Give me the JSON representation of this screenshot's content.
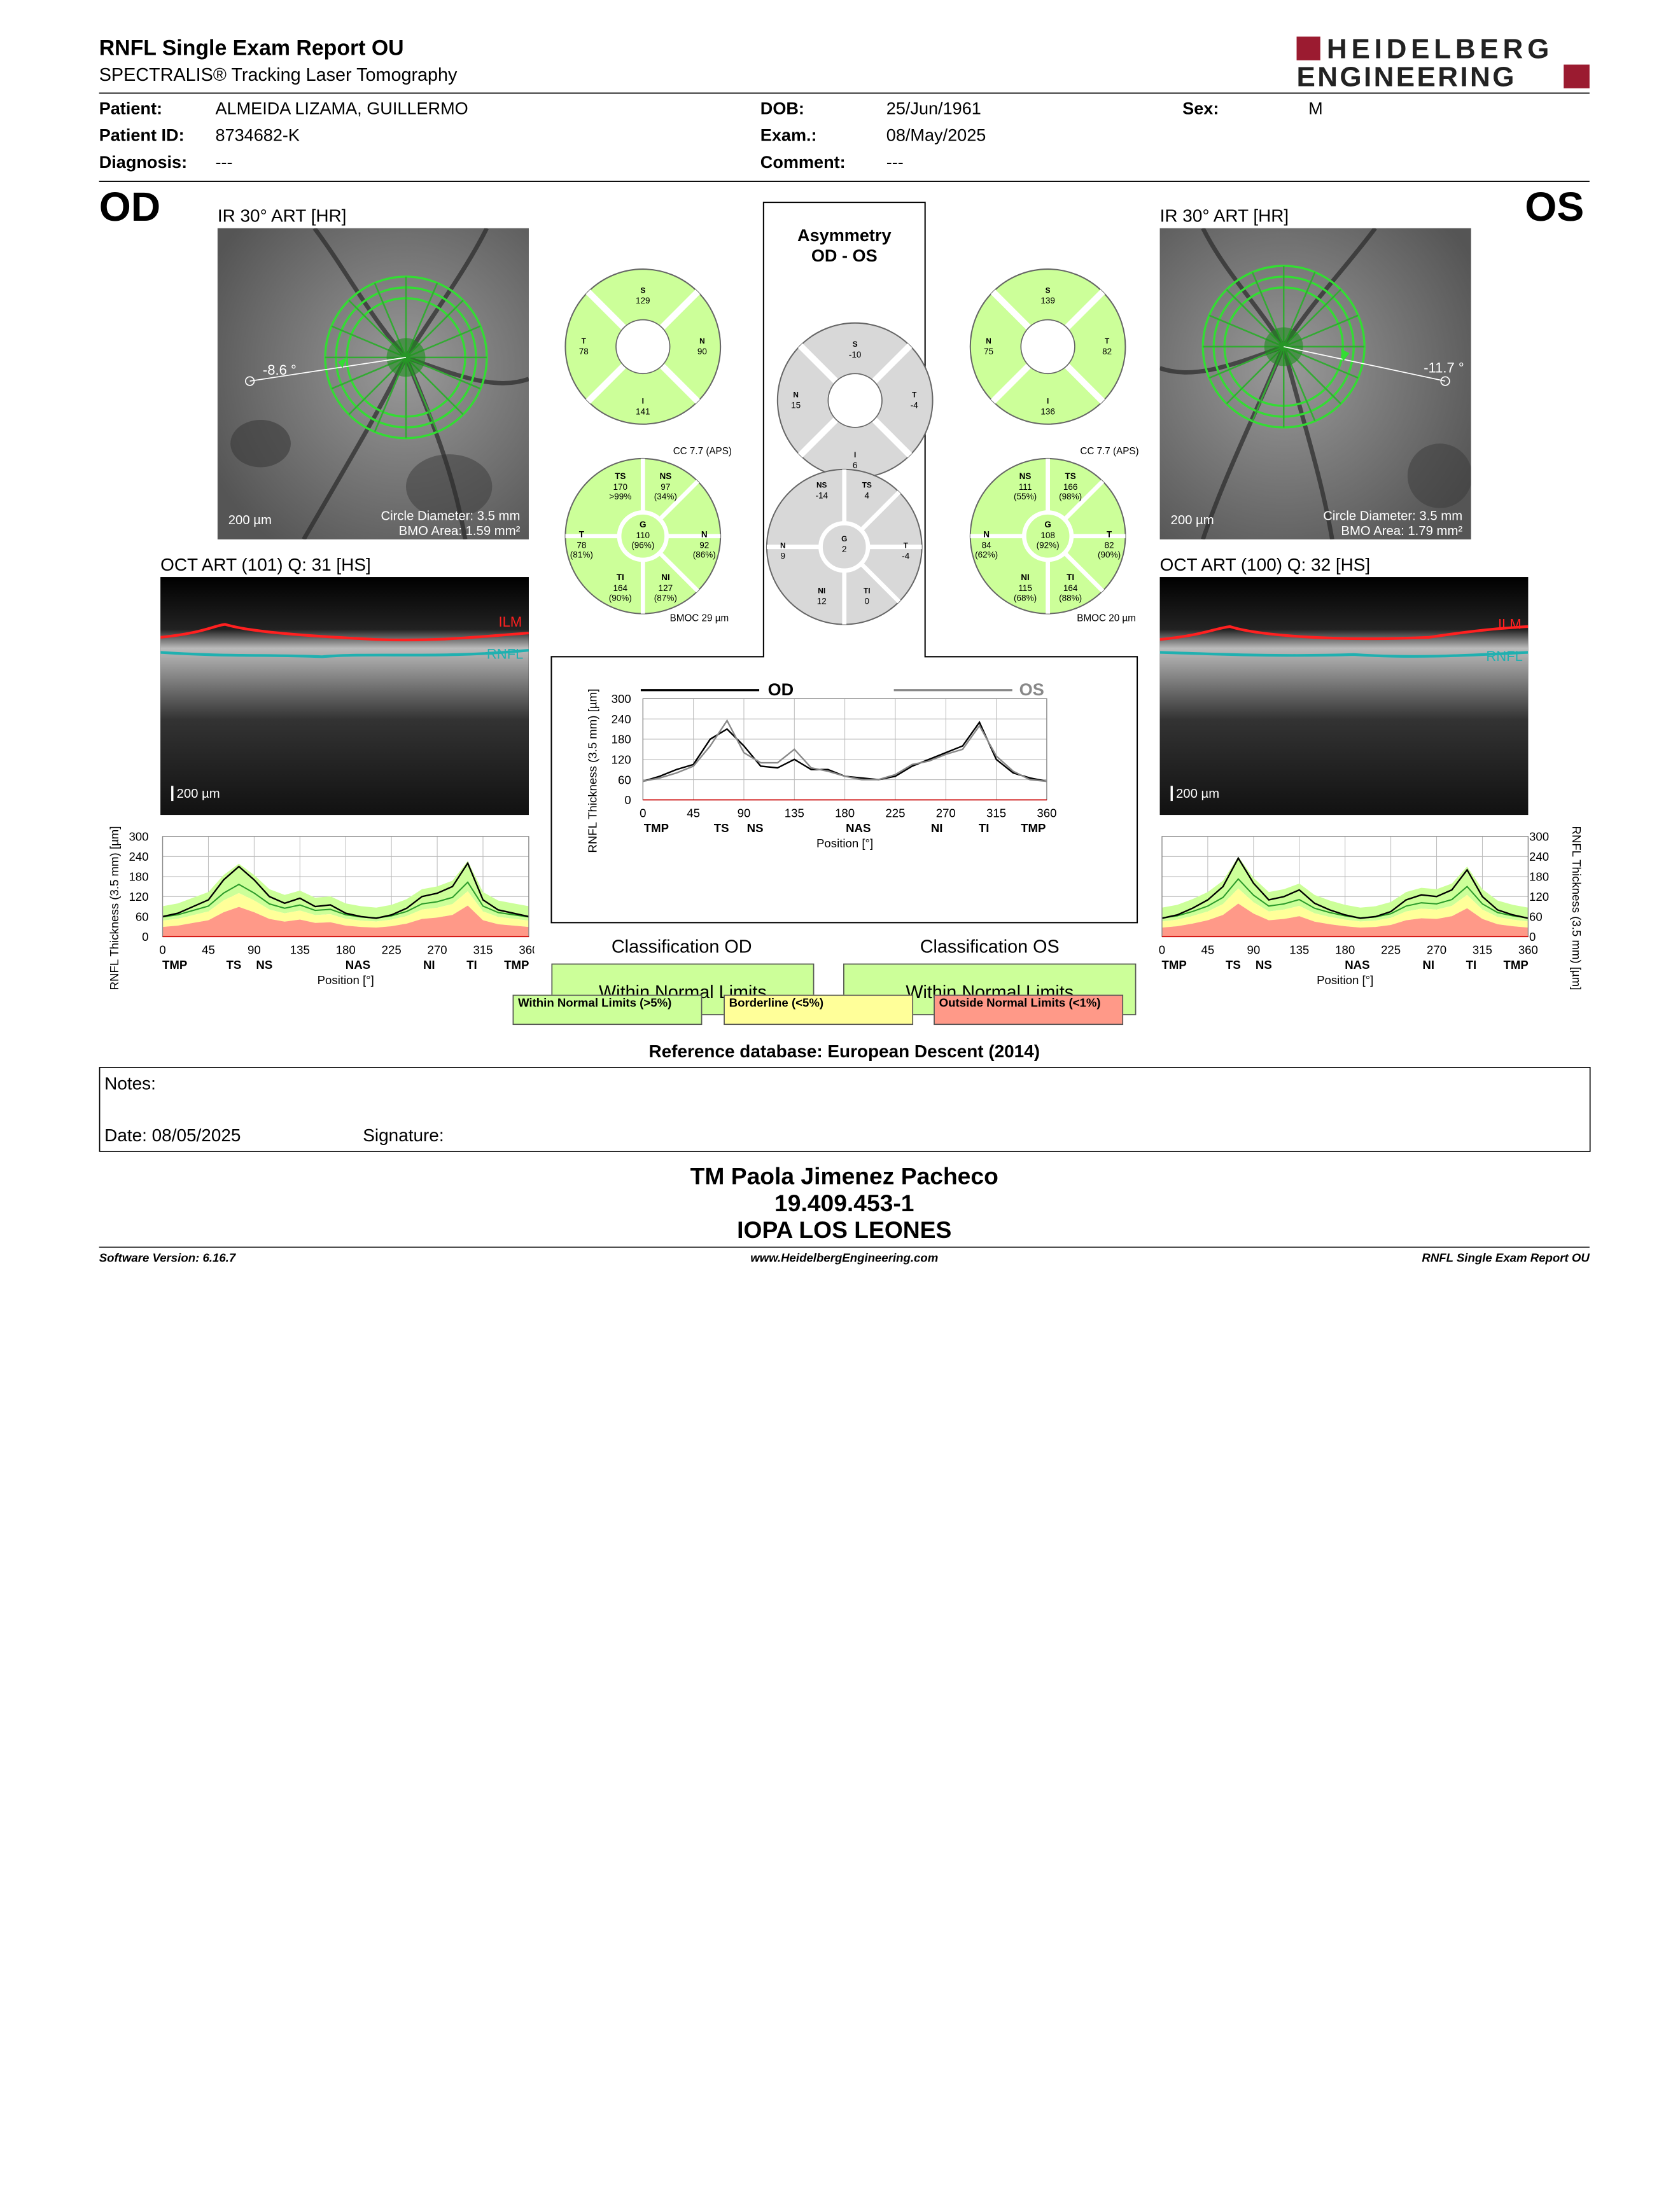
{
  "header": {
    "title": "RNFL Single Exam Report OU",
    "subtitle": "SPECTRALIS® Tracking Laser Tomography",
    "brand_line1": "HEIDELBERG",
    "brand_line2": "ENGINEERING",
    "brand_color": "#9b1b30"
  },
  "patient": {
    "patient_label": "Patient:",
    "patient": "ALMEIDA LIZAMA, GUILLERMO",
    "id_label": "Patient ID:",
    "id": "8734682-K",
    "diagnosis_label": "Diagnosis:",
    "diagnosis": "---",
    "dob_label": "DOB:",
    "dob": "25/Jun/1961",
    "exam_label": "Exam.:",
    "exam": "08/May/2025",
    "comment_label": "Comment:",
    "comment": "---",
    "sex_label": "Sex:",
    "sex": "M"
  },
  "od": {
    "eye": "OD",
    "ir_title": "IR 30° ART [HR]",
    "angle": "-8.6 °",
    "scale": "200 µm",
    "circle_diameter": "Circle Diameter: 3.5 mm",
    "bmo_area": "BMO Area: 1.59 mm²",
    "oct_title": "OCT ART (101) Q: 31 [HS]",
    "ilm": "ILM",
    "rnfl": "RNFL",
    "oct_scale": "200 µm",
    "sectors4": {
      "S": "129",
      "T": "78",
      "N": "90",
      "I": "141"
    },
    "sectors6": {
      "cc": "CC 7.7 (APS)",
      "TS": "TS",
      "TS_v": "170",
      "TS_p": ">99%",
      "NS": "NS",
      "NS_v": "97",
      "NS_p": "(34%)",
      "T": "T",
      "T_v": "78",
      "T_p": "(81%)",
      "G": "G",
      "G_v": "110",
      "G_p": "(96%)",
      "N": "N",
      "N_v": "92",
      "N_p": "(86%)",
      "TI": "TI",
      "TI_v": "164",
      "TI_p": "(90%)",
      "NI": "NI",
      "NI_v": "127",
      "NI_p": "(87%)",
      "bmoc": "BMOC 29 µm"
    },
    "classification_label": "Classification OD",
    "classification": "Within Normal Limits"
  },
  "os": {
    "eye": "OS",
    "ir_title": "IR 30° ART [HR]",
    "angle": "-11.7 °",
    "scale": "200 µm",
    "circle_diameter": "Circle Diameter: 3.5 mm",
    "bmo_area": "BMO Area: 1.79 mm²",
    "oct_title": "OCT ART (100) Q: 32 [HS]",
    "ilm": "ILM",
    "rnfl": "RNFL",
    "oct_scale": "200 µm",
    "sectors4": {
      "S": "139",
      "N": "75",
      "T": "82",
      "I": "136"
    },
    "sectors6": {
      "cc": "CC 7.7 (APS)",
      "NS": "NS",
      "NS_v": "111",
      "NS_p": "(55%)",
      "TS": "TS",
      "TS_v": "166",
      "TS_p": "(98%)",
      "N": "N",
      "N_v": "84",
      "N_p": "(62%)",
      "G": "G",
      "G_v": "108",
      "G_p": "(92%)",
      "T": "T",
      "T_v": "82",
      "T_p": "(90%)",
      "NI": "NI",
      "NI_v": "115",
      "NI_p": "(68%)",
      "TI": "TI",
      "TI_v": "164",
      "TI_p": "(88%)",
      "bmoc": "BMOC 20 µm"
    },
    "classification_label": "Classification OS",
    "classification": "Within Normal Limits"
  },
  "asym": {
    "title1": "Asymmetry",
    "title2": "OD - OS",
    "S": "-10",
    "N": "15",
    "T": "-4",
    "I": "6",
    "NS": "-14",
    "TS": "4",
    "N6": "9",
    "G": "2",
    "T6": "-4",
    "NI": "12",
    "TI": "0"
  },
  "chart_axes": {
    "ylabel": "RNFL Thickness (3.5 mm) [µm]",
    "xlabel": "Position [°]",
    "yticks": [
      "300",
      "240",
      "180",
      "120",
      "60",
      "0"
    ],
    "xticks": [
      "0",
      "45",
      "90",
      "135",
      "180",
      "225",
      "270",
      "315",
      "360"
    ],
    "sectors": [
      "TMP",
      "TS",
      "NS",
      "NAS",
      "NI",
      "TI",
      "TMP"
    ],
    "legend_od": "OD",
    "legend_os": "OS"
  },
  "chart_data": [
    {
      "type": "line",
      "title": "OD",
      "ylim": [
        0,
        300
      ],
      "xlim": [
        0,
        360
      ],
      "x": [
        0,
        15,
        30,
        45,
        60,
        75,
        90,
        105,
        120,
        135,
        150,
        165,
        180,
        195,
        210,
        225,
        240,
        255,
        270,
        285,
        300,
        315,
        330,
        345,
        360
      ],
      "series": [
        {
          "values": [
            60,
            70,
            90,
            110,
            170,
            210,
            170,
            120,
            100,
            115,
            90,
            95,
            70,
            60,
            55,
            65,
            85,
            120,
            130,
            150,
            220,
            110,
            80,
            70,
            60
          ]
        }
      ]
    },
    {
      "type": "line",
      "title": "OS",
      "ylim": [
        0,
        300
      ],
      "xlim": [
        0,
        360
      ],
      "x": [
        0,
        15,
        30,
        45,
        60,
        75,
        90,
        105,
        120,
        135,
        150,
        165,
        180,
        195,
        210,
        225,
        240,
        255,
        270,
        285,
        300,
        315,
        330,
        345,
        360
      ],
      "series": [
        {
          "values": [
            55,
            65,
            85,
            110,
            150,
            235,
            160,
            110,
            120,
            140,
            100,
            80,
            65,
            55,
            60,
            75,
            110,
            125,
            120,
            140,
            200,
            120,
            80,
            65,
            55
          ]
        }
      ]
    },
    {
      "type": "line",
      "title": "Asymmetry",
      "ylim": [
        0,
        300
      ],
      "xlim": [
        0,
        360
      ],
      "x": [
        0,
        15,
        30,
        45,
        60,
        75,
        90,
        105,
        120,
        135,
        150,
        165,
        180,
        195,
        210,
        225,
        240,
        255,
        270,
        285,
        300,
        315,
        330,
        345,
        360
      ],
      "series": [
        {
          "name": "OD",
          "values": [
            55,
            70,
            90,
            105,
            180,
            210,
            160,
            100,
            95,
            120,
            90,
            90,
            70,
            65,
            60,
            70,
            100,
            120,
            140,
            160,
            230,
            120,
            80,
            65,
            55
          ]
        },
        {
          "name": "OS",
          "values": [
            55,
            65,
            80,
            100,
            160,
            235,
            140,
            110,
            110,
            150,
            95,
            85,
            70,
            60,
            60,
            75,
            105,
            115,
            135,
            150,
            220,
            130,
            85,
            60,
            55
          ]
        }
      ]
    }
  ],
  "legend": {
    "wnl": "Within Normal Limits (>5%)",
    "bl": "Borderline (<5%)",
    "onl": "Outside Normal Limits (<1%)",
    "wnl_color": "#ccff99",
    "bl_color": "#ffff99",
    "onl_color": "#ff9988"
  },
  "reference": "Reference database: European Descent (2014)",
  "notes": {
    "label": "Notes:",
    "date": "Date: 08/05/2025",
    "signature": "Signature:"
  },
  "operator": {
    "name": "TM Paola Jimenez Pacheco",
    "rut": "19.409.453-1",
    "clinic": "IOPA LOS LEONES"
  },
  "footer": {
    "version": "Software Version: 6.16.7",
    "url": "www.HeidelbergEngineering.com",
    "report": "RNFL Single Exam Report OU"
  }
}
